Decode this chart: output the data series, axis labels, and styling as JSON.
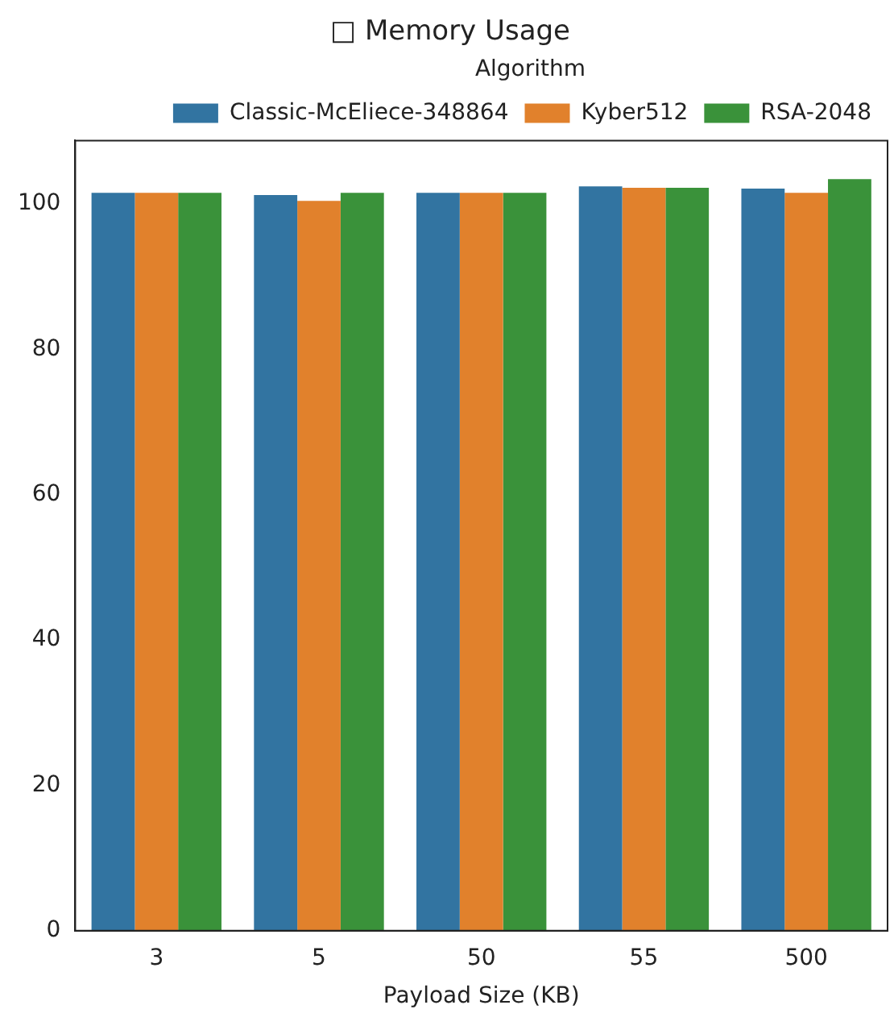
{
  "chart_data": {
    "type": "bar",
    "title": "□ Memory Usage",
    "xlabel": "Payload Size (KB)",
    "legend_title": "Algorithm",
    "legend": "top right",
    "grid": false,
    "categories": [
      "3",
      "5",
      "50",
      "55",
      "500"
    ],
    "series": [
      {
        "name": "Classic-McEliece-348864",
        "color": "#3274a1",
        "values": [
          101.5,
          101.2,
          101.5,
          102.4,
          102.1
        ]
      },
      {
        "name": "Kyber512",
        "color": "#e1812c",
        "values": [
          101.5,
          100.4,
          101.5,
          102.2,
          101.5
        ]
      },
      {
        "name": "RSA-2048",
        "color": "#3a923a",
        "values": [
          101.5,
          101.5,
          101.5,
          102.2,
          103.4
        ]
      }
    ],
    "ylim": [
      0,
      108.7
    ],
    "yticks": [
      0,
      20,
      40,
      60,
      80,
      100
    ]
  }
}
